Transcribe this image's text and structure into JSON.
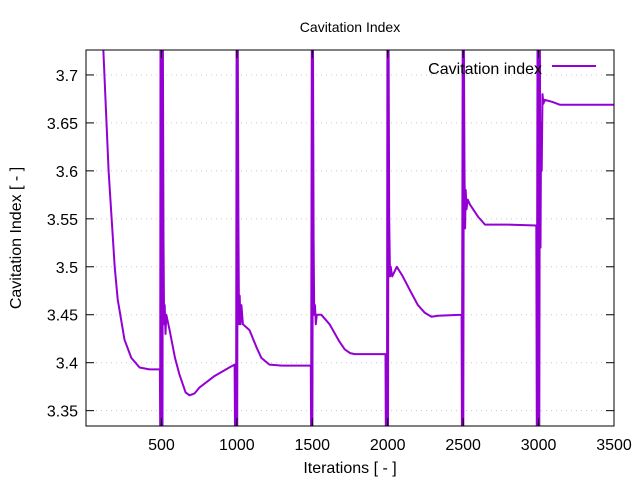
{
  "chart_data": {
    "type": "line",
    "title": "Cavitation Index",
    "xlabel": "Iterations [ - ]",
    "ylabel": "Cavitation Index [ - ]",
    "xlim": [
      0,
      3500
    ],
    "ylim": [
      3.334,
      3.726
    ],
    "xticks": [
      500,
      1000,
      1500,
      2000,
      2500,
      3000,
      3500
    ],
    "yticks": [
      3.35,
      3.4,
      3.45,
      3.5,
      3.55,
      3.6,
      3.65,
      3.7
    ],
    "ytick_labels": [
      "3.35",
      "3.4",
      "3.45",
      "3.5",
      "3.55",
      "3.6",
      "3.65",
      "3.7"
    ],
    "grid": true,
    "legend_position": "top-right",
    "series": [
      {
        "name": "Cavitation index",
        "color": "#9400d3",
        "points": [
          [
            115,
            3.9
          ],
          [
            150,
            3.6
          ],
          [
            190,
            3.5
          ],
          [
            210,
            3.466
          ],
          [
            255,
            3.424
          ],
          [
            300,
            3.405
          ],
          [
            355,
            3.395
          ],
          [
            420,
            3.393
          ],
          [
            490,
            3.393
          ],
          [
            492,
            3.2
          ],
          [
            494,
            3.9
          ],
          [
            500,
            3.2
          ],
          [
            503,
            3.9
          ],
          [
            507,
            3.2
          ],
          [
            510,
            3.9
          ],
          [
            514,
            3.53
          ],
          [
            518,
            3.44
          ],
          [
            522,
            3.46
          ],
          [
            527,
            3.43
          ],
          [
            532,
            3.45
          ],
          [
            554,
            3.434
          ],
          [
            590,
            3.405
          ],
          [
            620,
            3.3875
          ],
          [
            660,
            3.369
          ],
          [
            686,
            3.366
          ],
          [
            720,
            3.368
          ],
          [
            752,
            3.374
          ],
          [
            851,
            3.386
          ],
          [
            950,
            3.395
          ],
          [
            985,
            3.398
          ],
          [
            988,
            3.2
          ],
          [
            995,
            3.2
          ],
          [
            998,
            3.9
          ],
          [
            1002,
            3.2
          ],
          [
            1006,
            3.9
          ],
          [
            1010,
            3.55
          ],
          [
            1014,
            3.44
          ],
          [
            1019,
            3.47
          ],
          [
            1024,
            3.44
          ],
          [
            1030,
            3.46
          ],
          [
            1040,
            3.44
          ],
          [
            1084,
            3.434
          ],
          [
            1130,
            3.416
          ],
          [
            1163,
            3.405
          ],
          [
            1216,
            3.398
          ],
          [
            1300,
            3.397
          ],
          [
            1490,
            3.397
          ],
          [
            1492,
            3.2
          ],
          [
            1497,
            3.9
          ],
          [
            1501,
            3.2
          ],
          [
            1505,
            3.9
          ],
          [
            1509,
            3.53
          ],
          [
            1513,
            3.45
          ],
          [
            1518,
            3.46
          ],
          [
            1523,
            3.44
          ],
          [
            1530,
            3.45
          ],
          [
            1560,
            3.45
          ],
          [
            1615,
            3.44
          ],
          [
            1680,
            3.422
          ],
          [
            1715,
            3.414
          ],
          [
            1750,
            3.41
          ],
          [
            1782,
            3.409
          ],
          [
            1985,
            3.409
          ],
          [
            1987,
            3.2
          ],
          [
            1995,
            3.2
          ],
          [
            1998,
            3.9
          ],
          [
            2002,
            3.2
          ],
          [
            2006,
            3.9
          ],
          [
            2010,
            3.55
          ],
          [
            2015,
            3.49
          ],
          [
            2020,
            3.5
          ],
          [
            2030,
            3.49
          ],
          [
            2060,
            3.5
          ],
          [
            2100,
            3.49
          ],
          [
            2146,
            3.476
          ],
          [
            2200,
            3.46
          ],
          [
            2246,
            3.452
          ],
          [
            2290,
            3.448
          ],
          [
            2333,
            3.449
          ],
          [
            2490,
            3.45
          ],
          [
            2492,
            3.2
          ],
          [
            2497,
            3.9
          ],
          [
            2501,
            3.2
          ],
          [
            2505,
            3.9
          ],
          [
            2509,
            3.6
          ],
          [
            2513,
            3.54
          ],
          [
            2517,
            3.58
          ],
          [
            2522,
            3.56
          ],
          [
            2530,
            3.57
          ],
          [
            2545,
            3.565
          ],
          [
            2600,
            3.552
          ],
          [
            2645,
            3.544
          ],
          [
            2800,
            3.544
          ],
          [
            2985,
            3.543
          ],
          [
            2988,
            3.2
          ],
          [
            2993,
            3.9
          ],
          [
            2997,
            3.2
          ],
          [
            3001,
            3.9
          ],
          [
            3005,
            3.2
          ],
          [
            3009,
            3.9
          ],
          [
            3013,
            3.52
          ],
          [
            3017,
            3.65
          ],
          [
            3021,
            3.6
          ],
          [
            3026,
            3.68
          ],
          [
            3032,
            3.67
          ],
          [
            3040,
            3.674
          ],
          [
            3090,
            3.672
          ],
          [
            3140,
            3.669
          ],
          [
            3500,
            3.669
          ]
        ]
      }
    ]
  }
}
